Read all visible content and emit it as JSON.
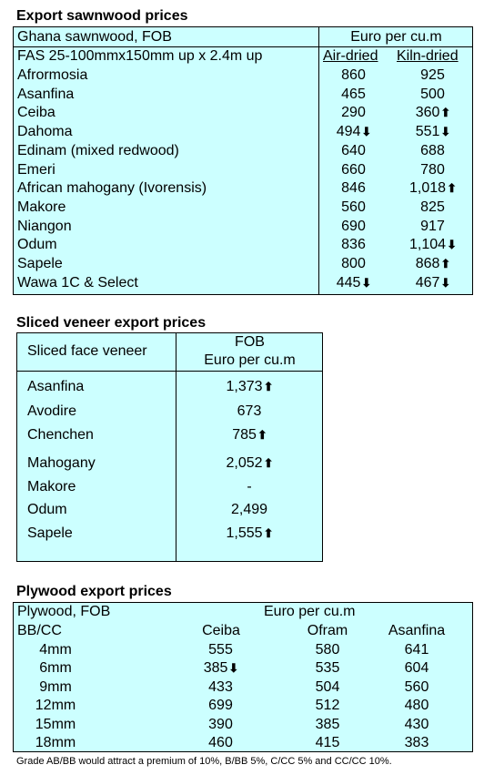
{
  "sawnwood": {
    "title": "Export sawnwood prices",
    "header_left_1": "Ghana sawnwood, FOB",
    "header_left_2": "FAS 25-100mmx150mm up x 2.4m up",
    "header_right": "Euro per cu.m",
    "col1": "Air-dried",
    "col2": "Kiln-dried",
    "rows": [
      {
        "name": "Afrormosia",
        "air": "860",
        "air_arrow": "",
        "kiln": "925",
        "kiln_arrow": ""
      },
      {
        "name": "Asanfina",
        "air": "465",
        "air_arrow": "",
        "kiln": "500",
        "kiln_arrow": ""
      },
      {
        "name": "Ceiba",
        "air": "290",
        "air_arrow": "",
        "kiln": "360",
        "kiln_arrow": "⬆"
      },
      {
        "name": "Dahoma",
        "air": "494",
        "air_arrow": "⬇",
        "kiln": "551",
        "kiln_arrow": "⬇"
      },
      {
        "name": "Edinam (mixed redwood)",
        "air": "640",
        "air_arrow": "",
        "kiln": "688",
        "kiln_arrow": ""
      },
      {
        "name": "Emeri",
        "air": "660",
        "air_arrow": "",
        "kiln": "780",
        "kiln_arrow": ""
      },
      {
        "name": "African mahogany (Ivorensis)",
        "air": "846",
        "air_arrow": "",
        "kiln": "1,018",
        "kiln_arrow": "⬆"
      },
      {
        "name": "Makore",
        "air": "560",
        "air_arrow": "",
        "kiln": "825",
        "kiln_arrow": ""
      },
      {
        "name": "Niangon",
        "air": "690",
        "air_arrow": "",
        "kiln": "917",
        "kiln_arrow": ""
      },
      {
        "name": "Odum",
        "air": "836",
        "air_arrow": "",
        "kiln": "1,104",
        "kiln_arrow": "⬇"
      },
      {
        "name": "Sapele",
        "air": "800",
        "air_arrow": "",
        "kiln": "868",
        "kiln_arrow": "⬆"
      },
      {
        "name": "Wawa 1C & Select",
        "air": "445",
        "air_arrow": "⬇",
        "kiln": "467",
        "kiln_arrow": "⬇"
      }
    ]
  },
  "veneer": {
    "title": "Sliced veneer export prices",
    "header_left": "Sliced face veneer",
    "header_right_1": "FOB",
    "header_right_2": "Euro per cu.m",
    "rows": [
      {
        "name": "Asanfina",
        "value": "1,373",
        "arrow": "⬆"
      },
      {
        "name": "Avodire",
        "value": "673",
        "arrow": ""
      },
      {
        "name": "Chenchen",
        "value": "785",
        "arrow": "⬆"
      },
      {
        "name": "Mahogany",
        "value": "2,052",
        "arrow": "⬆"
      },
      {
        "name": "Makore",
        "value": "-",
        "arrow": ""
      },
      {
        "name": "Odum",
        "value": "2,499",
        "arrow": ""
      },
      {
        "name": "Sapele",
        "value": "1,555",
        "arrow": "⬆"
      }
    ]
  },
  "plywood": {
    "title": "Plywood export prices",
    "header_left_1": "Plywood, FOB",
    "header_left_2": "BB/CC",
    "header_right": "Euro per cu.m",
    "col1": "Ceiba",
    "col2": "Ofram",
    "col3": "Asanfina",
    "rows": [
      {
        "size": "4mm",
        "c1": "555",
        "c1_arrow": "",
        "c2": "580",
        "c3": "641"
      },
      {
        "size": "6mm",
        "c1": "385",
        "c1_arrow": "⬇",
        "c2": "535",
        "c3": "604"
      },
      {
        "size": "9mm",
        "c1": "433",
        "c1_arrow": "",
        "c2": "504",
        "c3": "560"
      },
      {
        "size": "12mm",
        "c1": "699",
        "c1_arrow": "",
        "c2": "512",
        "c3": "480"
      },
      {
        "size": "15mm",
        "c1": "390",
        "c1_arrow": "",
        "c2": "385",
        "c3": "430"
      },
      {
        "size": "18mm",
        "c1": "460",
        "c1_arrow": "",
        "c2": "415",
        "c3": "383"
      }
    ],
    "note": "Grade AB/BB would attract a premium of 10%, B/BB 5%, C/CC 5% and CC/CC 10%."
  }
}
